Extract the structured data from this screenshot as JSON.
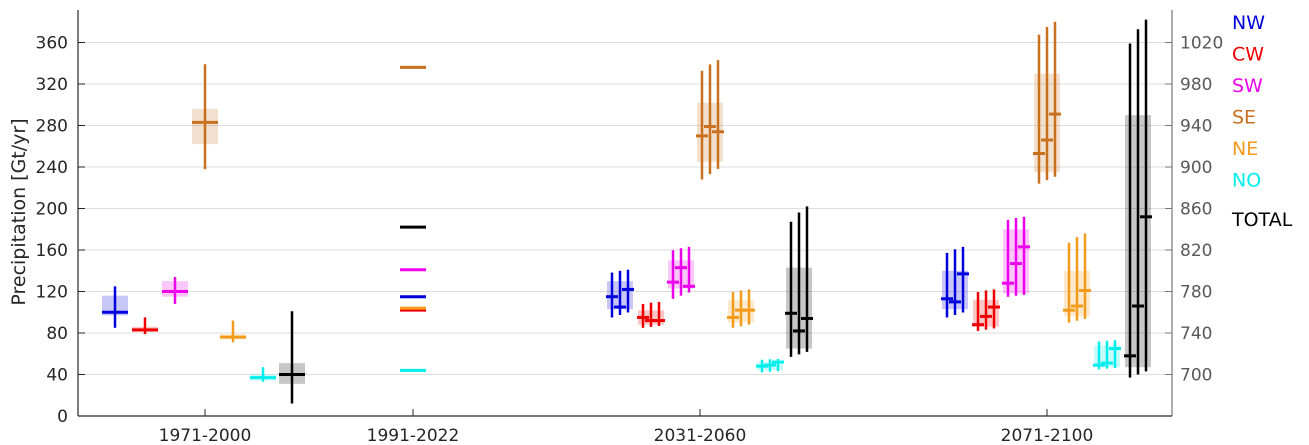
{
  "chart_data": {
    "type": "box",
    "ylabel": "Precipitation [Gt/yr]",
    "ylim": [
      0,
      390
    ],
    "yticks": [
      0,
      40,
      80,
      120,
      160,
      200,
      240,
      280,
      320,
      360
    ],
    "y2lim": [
      660,
      1050
    ],
    "y2ticks": [
      700,
      740,
      780,
      820,
      860,
      900,
      940,
      980,
      1020
    ],
    "y2_series": "TOTAL",
    "categories": [
      "1971-2000",
      "1991-2022",
      "2031-2060",
      "2071-2100"
    ],
    "grid": "horizontal",
    "legend_position": "right",
    "series": [
      {
        "name": "NW",
        "color": "#0000dd"
      },
      {
        "name": "CW",
        "color": "#ee0000"
      },
      {
        "name": "SW",
        "color": "#ee00ee"
      },
      {
        "name": "SE",
        "color": "#c8701e"
      },
      {
        "name": "NE",
        "color": "#f59b1b"
      },
      {
        "name": "NO",
        "color": "#00eeee"
      },
      {
        "name": "TOTAL",
        "color": "#000000"
      }
    ],
    "boxes": [
      {
        "category": "1971-2000",
        "series": "NW",
        "low": 85,
        "q1": 97,
        "median": 100,
        "q3": 116,
        "high": 125
      },
      {
        "category": "1971-2000",
        "series": "CW",
        "low": 79,
        "q1": 81,
        "median": 83,
        "q3": 86,
        "high": 95
      },
      {
        "category": "1971-2000",
        "series": "SW",
        "low": 108,
        "q1": 115,
        "median": 120,
        "q3": 130,
        "high": 134
      },
      {
        "category": "1971-2000",
        "series": "SE",
        "low": 238,
        "q1": 262,
        "median": 283,
        "q3": 296,
        "high": 339
      },
      {
        "category": "1971-2000",
        "series": "NE",
        "low": 71,
        "q1": 74,
        "median": 76,
        "q3": 79,
        "high": 92
      },
      {
        "category": "1971-2000",
        "series": "NO",
        "low": 33,
        "q1": 34,
        "median": 37,
        "q3": 40,
        "high": 47
      },
      {
        "category": "1971-2000",
        "series": "TOTAL",
        "low": 672,
        "q1": 691,
        "median": 700,
        "q3": 711,
        "high": 761
      },
      {
        "category": "2031-2060",
        "series": "NW",
        "low": 95,
        "q1": 103,
        "median": 113,
        "q3": 130,
        "high": 141,
        "members": [
          115,
          105,
          122
        ]
      },
      {
        "category": "2031-2060",
        "series": "CW",
        "low": 85,
        "q1": 88,
        "median": 95,
        "q3": 102,
        "high": 110,
        "members": [
          95,
          92,
          92
        ]
      },
      {
        "category": "2031-2060",
        "series": "SW",
        "low": 113,
        "q1": 123,
        "median": 128,
        "q3": 150,
        "high": 163,
        "members": [
          129,
          143,
          125
        ]
      },
      {
        "category": "2031-2060",
        "series": "SE",
        "low": 228,
        "q1": 245,
        "median": 272,
        "q3": 302,
        "high": 343,
        "members": [
          270,
          279,
          274
        ]
      },
      {
        "category": "2031-2060",
        "series": "NE",
        "low": 85,
        "q1": 90,
        "median": 98,
        "q3": 112,
        "high": 122,
        "members": [
          95,
          102,
          102
        ]
      },
      {
        "category": "2031-2060",
        "series": "NO",
        "low": 42,
        "q1": 44,
        "median": 48,
        "q3": 52,
        "high": 55,
        "members": [
          48,
          49,
          52
        ]
      },
      {
        "category": "2031-2060",
        "series": "TOTAL",
        "low": 717,
        "q1": 725,
        "median": 750,
        "q3": 803,
        "high": 862,
        "members": [
          759,
          742,
          754
        ]
      },
      {
        "category": "2071-2100",
        "series": "NW",
        "low": 95,
        "q1": 103,
        "median": 112,
        "q3": 140,
        "high": 163,
        "members": [
          113,
          110,
          137
        ]
      },
      {
        "category": "2071-2100",
        "series": "CW",
        "low": 82,
        "q1": 86,
        "median": 96,
        "q3": 112,
        "high": 122,
        "members": [
          88,
          96,
          105
        ]
      },
      {
        "category": "2071-2100",
        "series": "SW",
        "low": 115,
        "q1": 118,
        "median": 130,
        "q3": 180,
        "high": 192,
        "members": [
          128,
          147,
          163
        ]
      },
      {
        "category": "2071-2100",
        "series": "SE",
        "low": 224,
        "q1": 235,
        "median": 265,
        "q3": 330,
        "high": 380,
        "members": [
          253,
          266,
          291
        ]
      },
      {
        "category": "2071-2100",
        "series": "NE",
        "low": 90,
        "q1": 96,
        "median": 105,
        "q3": 140,
        "high": 176,
        "members": [
          102,
          106,
          121
        ]
      },
      {
        "category": "2071-2100",
        "series": "NO",
        "low": 45,
        "q1": 47,
        "median": 50,
        "q3": 68,
        "high": 73,
        "members": [
          49,
          51,
          65
        ]
      },
      {
        "category": "2071-2100",
        "series": "TOTAL",
        "low": 697,
        "q1": 707,
        "median": 770,
        "q3": 950,
        "high": 1042,
        "members": [
          718,
          766,
          852
        ]
      }
    ],
    "observations_1991_2022": [
      {
        "series": "NW",
        "value": 115
      },
      {
        "series": "CW",
        "value": 102
      },
      {
        "series": "SW",
        "value": 141
      },
      {
        "series": "SE",
        "value": 336
      },
      {
        "series": "NE",
        "value": 104
      },
      {
        "series": "NO",
        "value": 44
      },
      {
        "series": "TOTAL",
        "value": 842
      }
    ]
  }
}
